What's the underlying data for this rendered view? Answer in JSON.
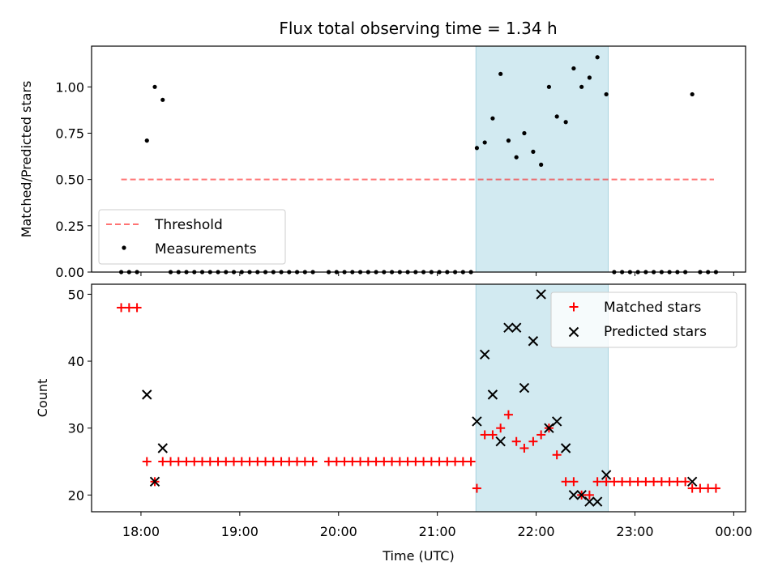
{
  "chart_data": {
    "type": "scatter",
    "title": "Flux total observing time = 1.34 h",
    "xlabel": "Time (UTC)",
    "x_ticks": [
      "18:00",
      "19:00",
      "20:00",
      "21:00",
      "22:00",
      "23:00",
      "00:00"
    ],
    "x_tick_hours": [
      18,
      19,
      20,
      21,
      22,
      23,
      24
    ],
    "xlim_hours": [
      17.5,
      24.12
    ],
    "highlight_span_hours": [
      21.39,
      22.73
    ],
    "colors": {
      "span": "#add8e6",
      "threshold": "#ff0000",
      "measurement": "#000000",
      "matched": "#ff0000",
      "predicted": "#000000"
    },
    "panels": [
      {
        "ylabel": "Matched/Predicted stars",
        "ylim": [
          0,
          1.22
        ],
        "y_ticks": [
          0.0,
          0.25,
          0.5,
          0.75,
          1.0
        ],
        "y_tick_labels": [
          "0.00",
          "0.25",
          "0.50",
          "0.75",
          "1.00"
        ],
        "legend_position": "lower-left",
        "threshold": {
          "name": "Threshold",
          "value": 0.5,
          "x_range_hours": [
            17.8,
            23.8
          ]
        },
        "measurements": {
          "name": "Measurements",
          "points": [
            [
              17.8,
              0
            ],
            [
              17.88,
              0
            ],
            [
              17.96,
              0
            ],
            [
              18.06,
              0.71
            ],
            [
              18.14,
              1.0
            ],
            [
              18.22,
              0.93
            ],
            [
              18.3,
              0
            ],
            [
              18.38,
              0
            ],
            [
              18.46,
              0
            ],
            [
              18.54,
              0
            ],
            [
              18.62,
              0
            ],
            [
              18.7,
              0
            ],
            [
              18.78,
              0
            ],
            [
              18.86,
              0
            ],
            [
              18.94,
              0
            ],
            [
              19.02,
              0
            ],
            [
              19.1,
              0
            ],
            [
              19.18,
              0
            ],
            [
              19.26,
              0
            ],
            [
              19.34,
              0
            ],
            [
              19.42,
              0
            ],
            [
              19.5,
              0
            ],
            [
              19.58,
              0
            ],
            [
              19.66,
              0
            ],
            [
              19.74,
              0
            ],
            [
              19.9,
              0
            ],
            [
              19.98,
              0
            ],
            [
              20.06,
              0
            ],
            [
              20.14,
              0
            ],
            [
              20.22,
              0
            ],
            [
              20.3,
              0
            ],
            [
              20.38,
              0
            ],
            [
              20.46,
              0
            ],
            [
              20.54,
              0
            ],
            [
              20.62,
              0
            ],
            [
              20.7,
              0
            ],
            [
              20.78,
              0
            ],
            [
              20.86,
              0
            ],
            [
              20.94,
              0
            ],
            [
              21.02,
              0
            ],
            [
              21.1,
              0
            ],
            [
              21.18,
              0
            ],
            [
              21.26,
              0
            ],
            [
              21.34,
              0
            ],
            [
              21.4,
              0.67
            ],
            [
              21.48,
              0.7
            ],
            [
              21.56,
              0.83
            ],
            [
              21.64,
              1.07
            ],
            [
              21.72,
              0.71
            ],
            [
              21.8,
              0.62
            ],
            [
              21.88,
              0.75
            ],
            [
              21.97,
              0.65
            ],
            [
              22.05,
              0.58
            ],
            [
              22.13,
              1.0
            ],
            [
              22.21,
              0.84
            ],
            [
              22.3,
              0.81
            ],
            [
              22.38,
              1.1
            ],
            [
              22.46,
              1.0
            ],
            [
              22.54,
              1.05
            ],
            [
              22.62,
              1.16
            ],
            [
              22.71,
              0.96
            ],
            [
              22.79,
              0
            ],
            [
              22.87,
              0
            ],
            [
              22.95,
              0
            ],
            [
              23.03,
              0
            ],
            [
              23.11,
              0
            ],
            [
              23.19,
              0
            ],
            [
              23.27,
              0
            ],
            [
              23.35,
              0
            ],
            [
              23.43,
              0
            ],
            [
              23.51,
              0
            ],
            [
              23.58,
              0.96
            ],
            [
              23.66,
              0
            ],
            [
              23.74,
              0
            ],
            [
              23.82,
              0
            ]
          ]
        }
      },
      {
        "ylabel": "Count",
        "ylim": [
          17.5,
          51.5
        ],
        "y_ticks": [
          20,
          30,
          40,
          50
        ],
        "y_tick_labels": [
          "20",
          "30",
          "40",
          "50"
        ],
        "legend_position": "upper-right",
        "matched": {
          "name": "Matched stars",
          "points": [
            [
              17.8,
              48
            ],
            [
              17.88,
              48
            ],
            [
              17.96,
              48
            ],
            [
              18.06,
              25
            ],
            [
              18.14,
              22
            ],
            [
              18.22,
              25
            ],
            [
              18.3,
              25
            ],
            [
              18.38,
              25
            ],
            [
              18.46,
              25
            ],
            [
              18.54,
              25
            ],
            [
              18.62,
              25
            ],
            [
              18.7,
              25
            ],
            [
              18.78,
              25
            ],
            [
              18.86,
              25
            ],
            [
              18.94,
              25
            ],
            [
              19.02,
              25
            ],
            [
              19.1,
              25
            ],
            [
              19.18,
              25
            ],
            [
              19.26,
              25
            ],
            [
              19.34,
              25
            ],
            [
              19.42,
              25
            ],
            [
              19.5,
              25
            ],
            [
              19.58,
              25
            ],
            [
              19.66,
              25
            ],
            [
              19.74,
              25
            ],
            [
              19.9,
              25
            ],
            [
              19.98,
              25
            ],
            [
              20.06,
              25
            ],
            [
              20.14,
              25
            ],
            [
              20.22,
              25
            ],
            [
              20.3,
              25
            ],
            [
              20.38,
              25
            ],
            [
              20.46,
              25
            ],
            [
              20.54,
              25
            ],
            [
              20.62,
              25
            ],
            [
              20.7,
              25
            ],
            [
              20.78,
              25
            ],
            [
              20.86,
              25
            ],
            [
              20.94,
              25
            ],
            [
              21.02,
              25
            ],
            [
              21.1,
              25
            ],
            [
              21.18,
              25
            ],
            [
              21.26,
              25
            ],
            [
              21.34,
              25
            ],
            [
              21.4,
              21
            ],
            [
              21.48,
              29
            ],
            [
              21.56,
              29
            ],
            [
              21.64,
              30
            ],
            [
              21.72,
              32
            ],
            [
              21.8,
              28
            ],
            [
              21.88,
              27
            ],
            [
              21.97,
              28
            ],
            [
              22.05,
              29
            ],
            [
              22.13,
              30
            ],
            [
              22.21,
              26
            ],
            [
              22.3,
              22
            ],
            [
              22.38,
              22
            ],
            [
              22.46,
              20
            ],
            [
              22.54,
              20
            ],
            [
              22.62,
              22
            ],
            [
              22.71,
              22
            ],
            [
              22.79,
              22
            ],
            [
              22.87,
              22
            ],
            [
              22.95,
              22
            ],
            [
              23.03,
              22
            ],
            [
              23.11,
              22
            ],
            [
              23.19,
              22
            ],
            [
              23.27,
              22
            ],
            [
              23.35,
              22
            ],
            [
              23.43,
              22
            ],
            [
              23.51,
              22
            ],
            [
              23.58,
              21
            ],
            [
              23.66,
              21
            ],
            [
              23.74,
              21
            ],
            [
              23.82,
              21
            ]
          ]
        },
        "predicted": {
          "name": "Predicted stars",
          "points": [
            [
              18.06,
              35
            ],
            [
              18.14,
              22
            ],
            [
              18.22,
              27
            ],
            [
              21.4,
              31
            ],
            [
              21.48,
              41
            ],
            [
              21.56,
              35
            ],
            [
              21.64,
              28
            ],
            [
              21.72,
              45
            ],
            [
              21.8,
              45
            ],
            [
              21.88,
              36
            ],
            [
              21.97,
              43
            ],
            [
              22.05,
              50
            ],
            [
              22.13,
              30
            ],
            [
              22.21,
              31
            ],
            [
              22.3,
              27
            ],
            [
              22.38,
              20
            ],
            [
              22.46,
              20
            ],
            [
              22.54,
              19
            ],
            [
              22.62,
              19
            ],
            [
              22.71,
              23
            ],
            [
              23.58,
              22
            ]
          ]
        }
      }
    ]
  }
}
